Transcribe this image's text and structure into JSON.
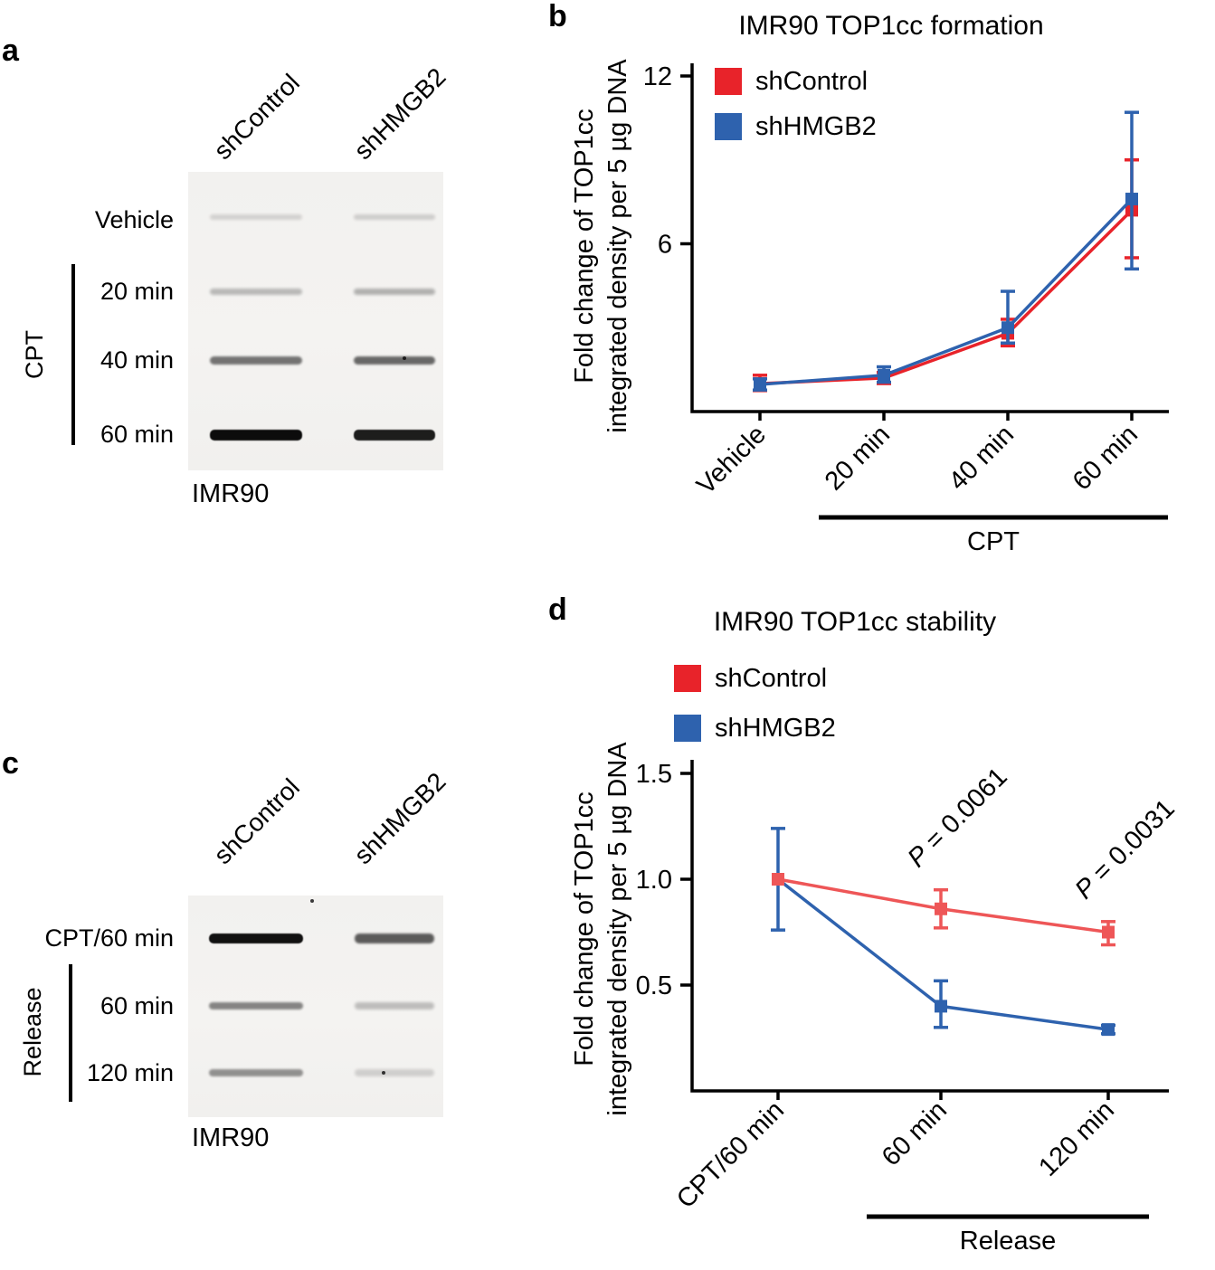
{
  "colors": {
    "red": "#e8232a",
    "red_light": "#ee5657",
    "blue": "#2e62ae",
    "axis": "#000000"
  },
  "panel_a": {
    "letter": "a",
    "lane_labels": [
      "shControl",
      "shHMGB2"
    ],
    "row_labels": [
      "Vehicle",
      "20 min",
      "40 min",
      "60 min"
    ],
    "treatment_label": "CPT",
    "cell_line_label": "IMR90",
    "bands": {
      "rows": [
        {
          "label": "Vehicle",
          "intensities": [
            0.13,
            0.15
          ]
        },
        {
          "label": "20 min",
          "intensities": [
            0.24,
            0.27
          ]
        },
        {
          "label": "40 min",
          "intensities": [
            0.52,
            0.57
          ]
        },
        {
          "label": "60 min",
          "intensities": [
            0.95,
            0.88
          ]
        }
      ]
    }
  },
  "panel_c": {
    "letter": "c",
    "lane_labels": [
      "shControl",
      "shHMGB2"
    ],
    "row_labels": [
      "CPT/60 min",
      "60 min",
      "120 min"
    ],
    "treatment_label": "Release",
    "cell_line_label": "IMR90",
    "bands": {
      "rows": [
        {
          "label": "CPT/60 min",
          "intensities": [
            0.93,
            0.62
          ]
        },
        {
          "label": "60 min",
          "intensities": [
            0.45,
            0.22
          ]
        },
        {
          "label": "120 min",
          "intensities": [
            0.4,
            0.14
          ]
        }
      ]
    }
  },
  "chart_data": [
    {
      "id": "panel_b",
      "panel_letter": "b",
      "type": "line",
      "title": "IMR90 TOP1cc formation",
      "ylabel": [
        "Fold change of TOP1cc",
        "integrated density per 5 µg DNA"
      ],
      "categories": [
        "Vehicle",
        "20 min",
        "40 min",
        "60 min"
      ],
      "x_group_label": "CPT",
      "x_group_span": [
        1,
        3
      ],
      "ylim": [
        0,
        12
      ],
      "yticks": [
        {
          "v": 6,
          "label": "6"
        },
        {
          "v": 12,
          "label": "12"
        }
      ],
      "legend_position": "top-left",
      "grid": false,
      "series": [
        {
          "name": "shControl",
          "color": "#e8232a",
          "values": [
            1.0,
            1.2,
            2.8,
            7.2
          ],
          "err_low": [
            0.25,
            0.2,
            0.45,
            1.7
          ],
          "err_high": [
            0.3,
            0.2,
            0.5,
            1.8
          ]
        },
        {
          "name": "shHMGB2",
          "color": "#2e62ae",
          "values": [
            0.97,
            1.3,
            3.0,
            7.6
          ],
          "err_low": [
            0.2,
            0.25,
            0.55,
            2.5
          ],
          "err_high": [
            0.2,
            0.3,
            1.3,
            3.1
          ]
        }
      ]
    },
    {
      "id": "panel_d",
      "panel_letter": "d",
      "type": "line",
      "title": "IMR90 TOP1cc stability",
      "ylabel": [
        "Fold change of TOP1cc",
        "integrated density per 5 µg DNA"
      ],
      "categories": [
        "CPT/60 min",
        "60 min",
        "120 min"
      ],
      "x_group_label": "Release",
      "x_group_span": [
        1,
        2
      ],
      "ylim": [
        0,
        1.5
      ],
      "yticks": [
        {
          "v": 0.5,
          "label": "0.5"
        },
        {
          "v": 1.0,
          "label": "1.0"
        },
        {
          "v": 1.5,
          "label": "1.5"
        }
      ],
      "legend_position": "top-left",
      "grid": false,
      "annotations": [
        {
          "text": "P = 0.0061",
          "x_index": 1,
          "y_value": 1.05
        },
        {
          "text": "P = 0.0031",
          "x_index": 2,
          "y_value": 0.9
        }
      ],
      "series": [
        {
          "name": "shControl",
          "color": "#ee5657",
          "legend_color": "#e8232a",
          "values": [
            1.0,
            0.86,
            0.75
          ],
          "err_low": [
            0,
            0.09,
            0.06
          ],
          "err_high": [
            0,
            0.09,
            0.05
          ]
        },
        {
          "name": "shHMGB2",
          "color": "#2e62ae",
          "values": [
            1.0,
            0.4,
            0.29
          ],
          "err_low": [
            0.24,
            0.1,
            0.02
          ],
          "err_high": [
            0.24,
            0.12,
            0.02
          ]
        }
      ]
    }
  ]
}
